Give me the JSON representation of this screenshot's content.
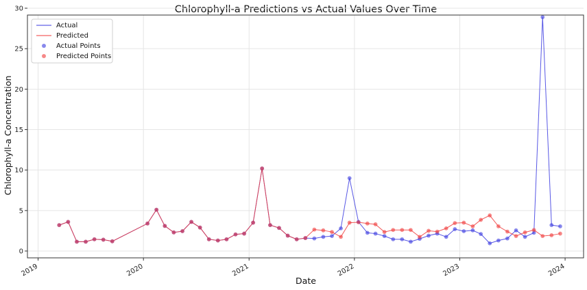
{
  "chart_data": {
    "type": "line",
    "title": "Chlorophyll-a Predictions vs Actual Values Over Time",
    "xlabel": "Date",
    "ylabel": "Chlorophyll-a Concentration",
    "x_ticks": [
      "2019",
      "2020",
      "2021",
      "2022",
      "2023",
      "2024"
    ],
    "y_ticks": [
      "0",
      "5",
      "10",
      "15",
      "20",
      "25",
      "30"
    ],
    "ylim": [
      0,
      30
    ],
    "xlim": [
      "2018-11-25",
      "2024-03-05"
    ],
    "grid": true,
    "legend_position": "top-left",
    "colors": {
      "actual": "#3a3ae0",
      "predicted": "#f03a3a"
    },
    "series": [
      {
        "name": "Actual",
        "point_label": "Actual Points",
        "points": [
          [
            "2019-03-15",
            3.2
          ],
          [
            "2019-04-15",
            3.6
          ],
          [
            "2019-05-15",
            1.15
          ],
          [
            "2019-06-15",
            1.15
          ],
          [
            "2019-07-15",
            1.45
          ],
          [
            "2019-08-15",
            1.4
          ],
          [
            "2019-09-15",
            1.2
          ],
          [
            "2020-01-15",
            3.4
          ],
          [
            "2020-02-15",
            5.1
          ],
          [
            "2020-03-15",
            3.1
          ],
          [
            "2020-04-15",
            2.3
          ],
          [
            "2020-05-15",
            2.45
          ],
          [
            "2020-06-15",
            3.6
          ],
          [
            "2020-07-15",
            2.9
          ],
          [
            "2020-08-15",
            1.45
          ],
          [
            "2020-09-15",
            1.3
          ],
          [
            "2020-10-15",
            1.45
          ],
          [
            "2020-11-15",
            2.05
          ],
          [
            "2020-12-15",
            2.15
          ],
          [
            "2021-01-15",
            3.5
          ],
          [
            "2021-02-15",
            10.2
          ],
          [
            "2021-03-15",
            3.2
          ],
          [
            "2021-04-15",
            2.85
          ],
          [
            "2021-05-15",
            1.9
          ],
          [
            "2021-06-15",
            1.45
          ],
          [
            "2021-07-15",
            1.6
          ],
          [
            "2021-08-15",
            1.55
          ],
          [
            "2021-09-15",
            1.75
          ],
          [
            "2021-10-15",
            1.85
          ],
          [
            "2021-11-15",
            2.8
          ],
          [
            "2021-12-15",
            9.0
          ],
          [
            "2022-01-15",
            3.6
          ],
          [
            "2022-02-15",
            2.25
          ],
          [
            "2022-03-15",
            2.15
          ],
          [
            "2022-04-15",
            1.85
          ],
          [
            "2022-05-15",
            1.45
          ],
          [
            "2022-06-15",
            1.45
          ],
          [
            "2022-07-15",
            1.15
          ],
          [
            "2022-08-15",
            1.5
          ],
          [
            "2022-09-15",
            1.9
          ],
          [
            "2022-10-15",
            2.15
          ],
          [
            "2022-11-15",
            1.75
          ],
          [
            "2022-12-15",
            2.7
          ],
          [
            "2023-01-15",
            2.45
          ],
          [
            "2023-02-15",
            2.55
          ],
          [
            "2023-03-15",
            2.1
          ],
          [
            "2023-04-15",
            0.95
          ],
          [
            "2023-05-15",
            1.3
          ],
          [
            "2023-06-15",
            1.55
          ],
          [
            "2023-07-15",
            2.55
          ],
          [
            "2023-08-15",
            1.75
          ],
          [
            "2023-09-15",
            2.25
          ],
          [
            "2023-10-15",
            28.9
          ],
          [
            "2023-11-15",
            3.2
          ],
          [
            "2023-12-15",
            3.05
          ]
        ]
      },
      {
        "name": "Predicted",
        "point_label": "Predicted Points",
        "points": [
          [
            "2019-03-15",
            3.2
          ],
          [
            "2019-04-15",
            3.6
          ],
          [
            "2019-05-15",
            1.15
          ],
          [
            "2019-06-15",
            1.15
          ],
          [
            "2019-07-15",
            1.45
          ],
          [
            "2019-08-15",
            1.4
          ],
          [
            "2019-09-15",
            1.2
          ],
          [
            "2020-01-15",
            3.4
          ],
          [
            "2020-02-15",
            5.1
          ],
          [
            "2020-03-15",
            3.1
          ],
          [
            "2020-04-15",
            2.3
          ],
          [
            "2020-05-15",
            2.45
          ],
          [
            "2020-06-15",
            3.6
          ],
          [
            "2020-07-15",
            2.9
          ],
          [
            "2020-08-15",
            1.45
          ],
          [
            "2020-09-15",
            1.3
          ],
          [
            "2020-10-15",
            1.45
          ],
          [
            "2020-11-15",
            2.05
          ],
          [
            "2020-12-15",
            2.15
          ],
          [
            "2021-01-15",
            3.5
          ],
          [
            "2021-02-15",
            10.2
          ],
          [
            "2021-03-15",
            3.2
          ],
          [
            "2021-04-15",
            2.85
          ],
          [
            "2021-05-15",
            1.9
          ],
          [
            "2021-06-15",
            1.45
          ],
          [
            "2021-07-15",
            1.6
          ],
          [
            "2021-08-15",
            2.65
          ],
          [
            "2021-09-15",
            2.55
          ],
          [
            "2021-10-15",
            2.35
          ],
          [
            "2021-11-15",
            1.75
          ],
          [
            "2021-12-15",
            3.5
          ],
          [
            "2022-01-15",
            3.55
          ],
          [
            "2022-02-15",
            3.4
          ],
          [
            "2022-03-15",
            3.3
          ],
          [
            "2022-04-15",
            2.35
          ],
          [
            "2022-05-15",
            2.6
          ],
          [
            "2022-06-15",
            2.6
          ],
          [
            "2022-07-15",
            2.6
          ],
          [
            "2022-08-15",
            1.75
          ],
          [
            "2022-09-15",
            2.5
          ],
          [
            "2022-10-15",
            2.4
          ],
          [
            "2022-11-15",
            2.8
          ],
          [
            "2022-12-15",
            3.45
          ],
          [
            "2023-01-15",
            3.5
          ],
          [
            "2023-02-15",
            3.05
          ],
          [
            "2023-03-15",
            3.85
          ],
          [
            "2023-04-15",
            4.4
          ],
          [
            "2023-05-15",
            3.05
          ],
          [
            "2023-06-15",
            2.4
          ],
          [
            "2023-07-15",
            1.85
          ],
          [
            "2023-08-15",
            2.3
          ],
          [
            "2023-09-15",
            2.6
          ],
          [
            "2023-10-15",
            1.85
          ],
          [
            "2023-11-15",
            1.95
          ],
          [
            "2023-12-15",
            2.15
          ]
        ]
      }
    ]
  }
}
